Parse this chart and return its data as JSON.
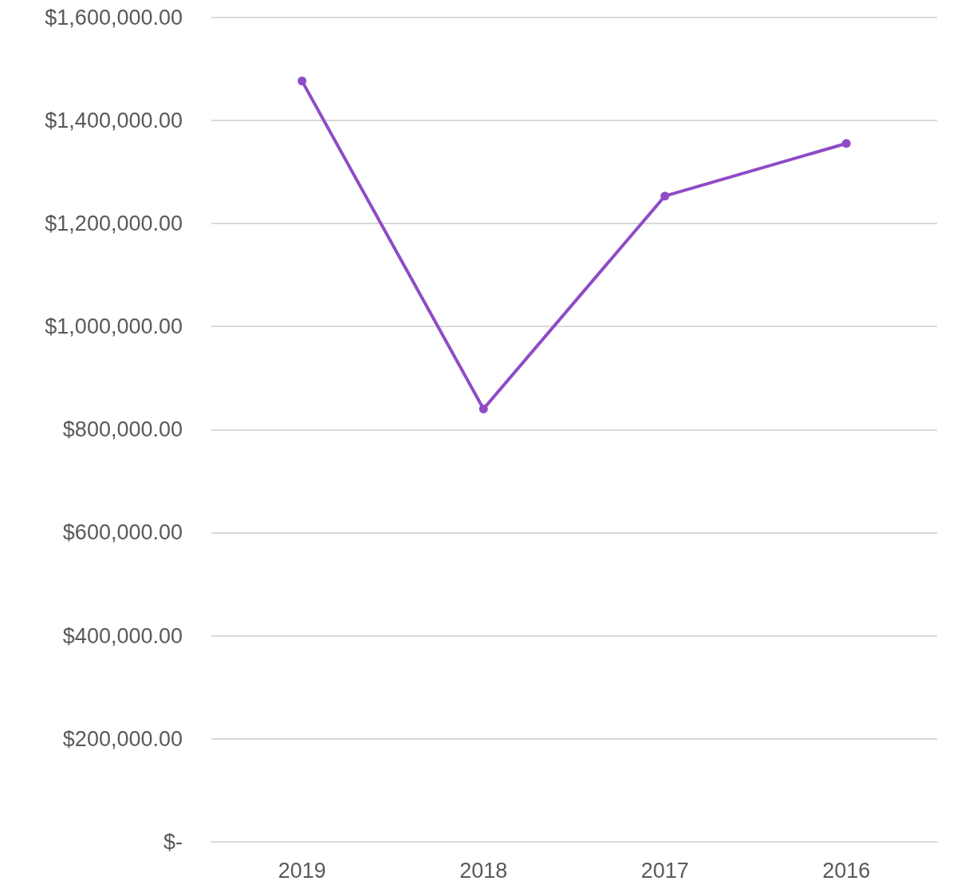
{
  "chart_data": {
    "type": "line",
    "categories": [
      "2019",
      "2018",
      "2017",
      "2016"
    ],
    "series": [
      {
        "color": "#8f4bc6",
        "values": [
          1476000,
          840000,
          1253000,
          1355000
        ]
      }
    ],
    "ylim": [
      0,
      1600000
    ],
    "yticks": [
      {
        "value": 0,
        "label": "$-"
      },
      {
        "value": 200000,
        "label": "$200,000.00"
      },
      {
        "value": 400000,
        "label": "$400,000.00"
      },
      {
        "value": 600000,
        "label": "$600,000.00"
      },
      {
        "value": 800000,
        "label": "$800,000.00"
      },
      {
        "value": 1000000,
        "label": "$1,000,000.00"
      },
      {
        "value": 1200000,
        "label": "$1,200,000.00"
      },
      {
        "value": 1400000,
        "label": "$1,400,000.00"
      },
      {
        "value": 1600000,
        "label": "$1,600,000.00"
      }
    ],
    "grid": "y",
    "marker": "circle",
    "line_style": "solid"
  }
}
